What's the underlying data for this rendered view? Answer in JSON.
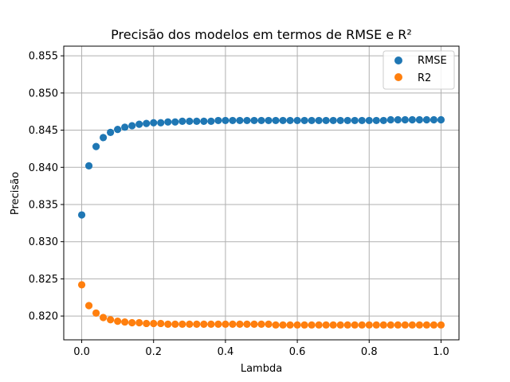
{
  "chart_data": {
    "type": "scatter",
    "title": "Precisão dos modelos em termos de RMSE e R²",
    "xlabel": "Lambda",
    "ylabel": "Precisão",
    "xlim": [
      -0.05,
      1.05
    ],
    "ylim": [
      0.8168,
      0.8563
    ],
    "xticks": [
      "0.0",
      "0.2",
      "0.4",
      "0.6",
      "0.8",
      "1.0"
    ],
    "yticks": [
      "0.820",
      "0.825",
      "0.830",
      "0.835",
      "0.840",
      "0.845",
      "0.850",
      "0.855"
    ],
    "grid": true,
    "legend_position": "top-right",
    "x": [
      0.0,
      0.02,
      0.04,
      0.06,
      0.08,
      0.1,
      0.12,
      0.14,
      0.16,
      0.18,
      0.2,
      0.22,
      0.24,
      0.26,
      0.28,
      0.3,
      0.32,
      0.34,
      0.36,
      0.38,
      0.4,
      0.42,
      0.44,
      0.46,
      0.48,
      0.5,
      0.52,
      0.54,
      0.56,
      0.58,
      0.6,
      0.62,
      0.64,
      0.66,
      0.68,
      0.7,
      0.72,
      0.74,
      0.76,
      0.78,
      0.8,
      0.82,
      0.84,
      0.86,
      0.88,
      0.9,
      0.92,
      0.94,
      0.96,
      0.98,
      1.0
    ],
    "series": [
      {
        "name": "RMSE",
        "color": "#1f77b4",
        "values": [
          0.8336,
          0.8402,
          0.8428,
          0.844,
          0.8447,
          0.8451,
          0.8454,
          0.8456,
          0.8458,
          0.8459,
          0.846,
          0.846,
          0.8461,
          0.8461,
          0.8462,
          0.8462,
          0.8462,
          0.8462,
          0.8462,
          0.8463,
          0.8463,
          0.8463,
          0.8463,
          0.8463,
          0.8463,
          0.8463,
          0.8463,
          0.8463,
          0.8463,
          0.8463,
          0.8463,
          0.8463,
          0.8463,
          0.8463,
          0.8463,
          0.8463,
          0.8463,
          0.8463,
          0.8463,
          0.8463,
          0.8463,
          0.8463,
          0.8463,
          0.8464,
          0.8464,
          0.8464,
          0.8464,
          0.8464,
          0.8464,
          0.8464,
          0.8464
        ]
      },
      {
        "name": "R2",
        "color": "#ff7f0e",
        "values": [
          0.8242,
          0.8214,
          0.8204,
          0.8198,
          0.8195,
          0.8193,
          0.8192,
          0.8191,
          0.8191,
          0.819,
          0.819,
          0.819,
          0.8189,
          0.8189,
          0.8189,
          0.8189,
          0.8189,
          0.8189,
          0.8189,
          0.8189,
          0.8189,
          0.8189,
          0.8189,
          0.8189,
          0.8189,
          0.8189,
          0.8189,
          0.8188,
          0.8188,
          0.8188,
          0.8188,
          0.8188,
          0.8188,
          0.8188,
          0.8188,
          0.8188,
          0.8188,
          0.8188,
          0.8188,
          0.8188,
          0.8188,
          0.8188,
          0.8188,
          0.8188,
          0.8188,
          0.8188,
          0.8188,
          0.8188,
          0.8188,
          0.8188,
          0.8188
        ]
      }
    ]
  }
}
